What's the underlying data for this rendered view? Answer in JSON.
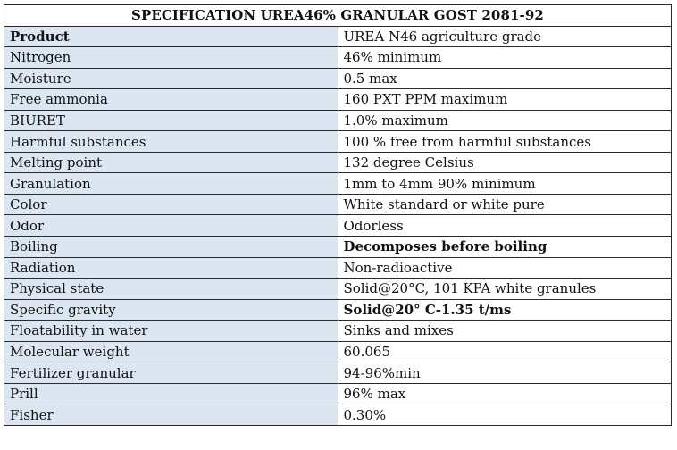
{
  "title": "SPECIFICATION UREA46% GRANULAR GOST 2081-92",
  "rows": [
    {
      "label": "Product",
      "value": "UREA N46 agriculture grade",
      "label_bold": true,
      "value_bold": false
    },
    {
      "label": "Nitrogen",
      "value": "46% minimum",
      "label_bold": false,
      "value_bold": false
    },
    {
      "label": "Moisture",
      "value": "0.5 max",
      "label_bold": false,
      "value_bold": false
    },
    {
      "label": "Free ammonia",
      "value": "160 PXT PPM maximum",
      "label_bold": false,
      "value_bold": false
    },
    {
      "label": "BIURET",
      "value": "1.0% maximum",
      "label_bold": false,
      "value_bold": false
    },
    {
      "label": "Harmful substances",
      "value": "100 % free from harmful substances",
      "label_bold": false,
      "value_bold": false
    },
    {
      "label": "Melting point",
      "value": "132 degree Celsius",
      "label_bold": false,
      "value_bold": false
    },
    {
      "label": "Granulation",
      "value": "1mm to 4mm 90% minimum",
      "label_bold": false,
      "value_bold": false
    },
    {
      "label": "Color",
      "value": "White standard or white pure",
      "label_bold": false,
      "value_bold": false
    },
    {
      "label": "Odor",
      "value": "Odorless",
      "label_bold": false,
      "value_bold": false
    },
    {
      "label": "Boiling",
      "value": "Decomposes before boiling",
      "label_bold": false,
      "value_bold": true
    },
    {
      "label": "Radiation",
      "value": "Non-radioactive",
      "label_bold": false,
      "value_bold": false
    },
    {
      "label": "Physical state",
      "value": "Solid@20°C, 101 KPA white granules",
      "label_bold": false,
      "value_bold": false
    },
    {
      "label": "Specific gravity",
      "value": "Solid@20° C-1.35 t/ms",
      "label_bold": false,
      "value_bold": true
    },
    {
      "label": "Floatability in water",
      "value": "Sinks and mixes",
      "label_bold": false,
      "value_bold": false
    },
    {
      "label": "Molecular weight",
      "value": "60.065",
      "label_bold": false,
      "value_bold": false
    },
    {
      "label": "Fertilizer granular",
      "value": "94-96%min",
      "label_bold": false,
      "value_bold": false
    },
    {
      "label": "Prill",
      "value": "96% max",
      "label_bold": false,
      "value_bold": false
    },
    {
      "label": "Fisher",
      "value": "0.30%",
      "label_bold": false,
      "value_bold": false
    }
  ],
  "colors": {
    "label_background": "#dce6f2",
    "value_background": "#ffffff",
    "border": "#2a2a2a",
    "text": "#111111"
  }
}
